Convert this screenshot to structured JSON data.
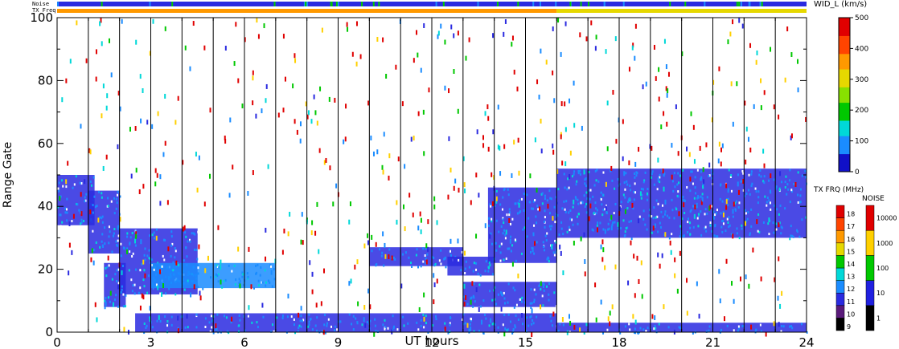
{
  "chart_data": {
    "type": "heatmap",
    "title": "",
    "xlabel": "UT hours",
    "ylabel": "Range Gate",
    "xlim": [
      0,
      24
    ],
    "ylim": [
      0,
      100
    ],
    "xticks": [
      "0",
      "3",
      "6",
      "9",
      "12",
      "15",
      "18",
      "21",
      "24"
    ],
    "yticks": [
      "0",
      "20",
      "40",
      "60",
      "80",
      "100"
    ],
    "colorbar_main": {
      "title": "WID_L (km/s)",
      "range": [
        0,
        500
      ],
      "tick_labels": [
        "0",
        "100",
        "200",
        "300",
        "400",
        "500"
      ]
    },
    "colorbar_txfreq": {
      "title": "TX FRQ (MHz)",
      "tick_labels": [
        "9",
        "10",
        "11",
        "12",
        "13",
        "14",
        "15",
        "16",
        "17",
        "18"
      ],
      "colors": [
        "#000000",
        "#5a1a7a",
        "#2a2ae0",
        "#1a8cff",
        "#00d8d8",
        "#00c800",
        "#e6d800",
        "#ff9900",
        "#ff4400",
        "#e00000"
      ]
    },
    "colorbar_noise": {
      "title": "NOISE",
      "tick_labels": [
        "1",
        "10",
        "100",
        "1000",
        "10000"
      ],
      "colors": [
        "#000000",
        "#2020e0",
        "#00c800",
        "#ffd000",
        "#e00000"
      ]
    },
    "strips": {
      "noise_label": "Noise",
      "txfreq_label": "TX Freq"
    },
    "vertical_markers_ut": [
      1,
      2,
      3,
      4,
      5,
      6,
      7,
      8,
      9,
      10,
      11,
      12,
      13,
      14,
      15,
      16,
      17,
      18,
      19,
      20,
      21,
      22,
      23
    ],
    "echo_bands": [
      {
        "t0": 0.0,
        "t1": 1.2,
        "g0": 34,
        "g1": 50,
        "color": "#2a2ae0"
      },
      {
        "t0": 1.0,
        "t1": 2.0,
        "g0": 25,
        "g1": 45,
        "color": "#2a2ae0"
      },
      {
        "t0": 1.5,
        "t1": 2.2,
        "g0": 8,
        "g1": 22,
        "color": "#2a2ae0"
      },
      {
        "t0": 2.0,
        "t1": 4.5,
        "g0": 12,
        "g1": 33,
        "color": "#2a2ae0"
      },
      {
        "t0": 3.0,
        "t1": 7.0,
        "g0": 14,
        "g1": 22,
        "color": "#1a8cff"
      },
      {
        "t0": 10.0,
        "t1": 13.0,
        "g0": 21,
        "g1": 27,
        "color": "#2a2ae0"
      },
      {
        "t0": 12.5,
        "t1": 14.0,
        "g0": 18,
        "g1": 24,
        "color": "#2a2ae0"
      },
      {
        "t0": 13.8,
        "t1": 16.0,
        "g0": 22,
        "g1": 46,
        "color": "#2a2ae0"
      },
      {
        "t0": 13.0,
        "t1": 16.0,
        "g0": 8,
        "g1": 16,
        "color": "#2a2ae0"
      },
      {
        "t0": 16.0,
        "t1": 24.0,
        "g0": 30,
        "g1": 52,
        "color": "#2a2ae0"
      },
      {
        "t0": 2.5,
        "t1": 16.0,
        "g0": 0,
        "g1": 6,
        "color": "#2a2ae0"
      },
      {
        "t0": 16.0,
        "t1": 24.0,
        "g0": 0,
        "g1": 3,
        "color": "#2a2ae0"
      }
    ]
  }
}
